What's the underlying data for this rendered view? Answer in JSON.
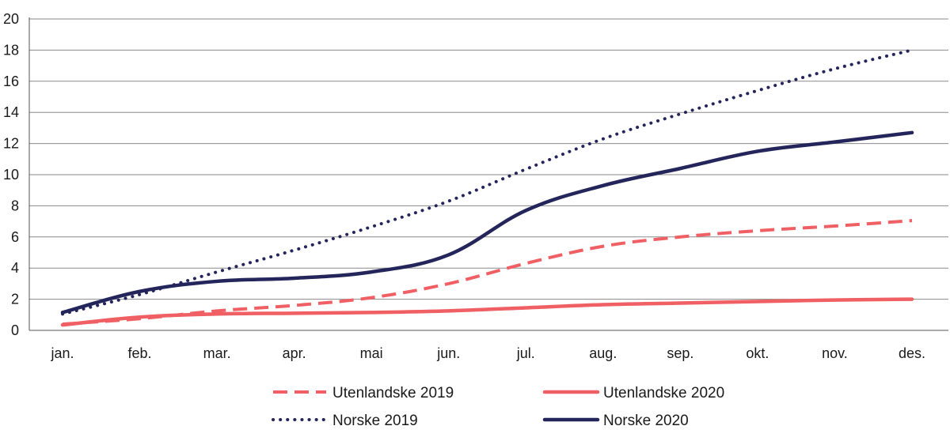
{
  "chart_data": {
    "type": "line",
    "title": "",
    "xlabel": "",
    "ylabel": "",
    "categories": [
      "jan.",
      "feb.",
      "mar.",
      "apr.",
      "mai",
      "jun.",
      "jul.",
      "aug.",
      "sep.",
      "okt.",
      "nov.",
      "des."
    ],
    "yticks": [
      "0",
      "2",
      "4",
      "6",
      "8",
      "10",
      "12",
      "14",
      "16",
      "18",
      "20"
    ],
    "ylim": [
      0,
      20
    ],
    "grid": true,
    "legend_position": "bottom",
    "series": [
      {
        "name": "Utenlandske 2019",
        "style": "dashed",
        "color": "#ef5f63",
        "values": [
          0.4,
          0.75,
          1.25,
          1.6,
          2.1,
          3.0,
          4.3,
          5.4,
          6.0,
          6.4,
          6.7,
          7.05
        ]
      },
      {
        "name": "Utenlandske 2020",
        "style": "solid",
        "color": "#ef5f63",
        "values": [
          0.35,
          0.85,
          1.05,
          1.1,
          1.15,
          1.25,
          1.45,
          1.65,
          1.75,
          1.85,
          1.95,
          2.0
        ]
      },
      {
        "name": "Norske 2019",
        "style": "dotted",
        "color": "#23255b",
        "values": [
          1.05,
          2.3,
          3.75,
          5.15,
          6.65,
          8.3,
          10.35,
          12.3,
          13.9,
          15.4,
          16.8,
          18.0
        ]
      },
      {
        "name": "Norske 2020",
        "style": "solid",
        "color": "#23255b",
        "values": [
          1.15,
          2.5,
          3.15,
          3.35,
          3.75,
          4.85,
          7.7,
          9.3,
          10.4,
          11.5,
          12.1,
          12.7
        ]
      }
    ]
  }
}
